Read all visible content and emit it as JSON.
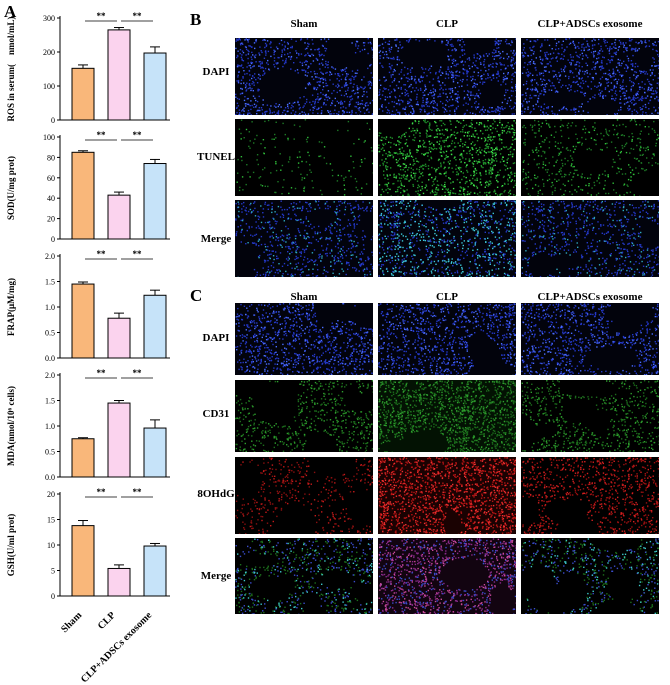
{
  "panels": {
    "a": "A",
    "b": "B",
    "c": "C"
  },
  "groups": [
    "Sham",
    "CLP",
    "CLP+ADSCs exosome"
  ],
  "group_colors": [
    "#f9b77a",
    "#fbd3ee",
    "#c6e3f9"
  ],
  "significance_label": "**",
  "panel_b": {
    "columns": [
      "Sham",
      "CLP",
      "CLP+ADSCs exosome"
    ],
    "rows": [
      "DAPI",
      "TUNEL",
      "Merge"
    ]
  },
  "panel_c": {
    "columns": [
      "Sham",
      "CLP",
      "CLP+ADSCs exosome"
    ],
    "rows": [
      "DAPI",
      "CD31",
      "8OHdG",
      "Merge"
    ]
  },
  "chart_data": [
    {
      "type": "bar",
      "categories": [
        "Sham",
        "CLP",
        "CLP+ADSCs exosome"
      ],
      "values": [
        152,
        265,
        197
      ],
      "errors": [
        10,
        7,
        18
      ],
      "ylabel": "ROS in serum(　nmol/mL)",
      "ylim": [
        0,
        300
      ],
      "yticks": [
        0,
        100,
        200,
        300
      ]
    },
    {
      "type": "bar",
      "categories": [
        "Sham",
        "CLP",
        "CLP+ADSCs exosome"
      ],
      "values": [
        85,
        43,
        74
      ],
      "errors": [
        1.5,
        3,
        4
      ],
      "ylabel": "SOD(U/mg prot)",
      "ylim": [
        0,
        100
      ],
      "yticks": [
        0,
        20,
        40,
        60,
        80,
        100
      ]
    },
    {
      "type": "bar",
      "categories": [
        "Sham",
        "CLP",
        "CLP+ADSCs exosome"
      ],
      "values": [
        1.45,
        0.78,
        1.23
      ],
      "errors": [
        0.04,
        0.1,
        0.1
      ],
      "ylabel": "FRAP(μM/mg)",
      "ylim": [
        0,
        2.0
      ],
      "yticks": [
        "0.0",
        "0.5",
        "1.0",
        "1.5",
        "2.0"
      ]
    },
    {
      "type": "bar",
      "categories": [
        "Sham",
        "CLP",
        "CLP+ADSCs exosome"
      ],
      "values": [
        0.75,
        1.45,
        0.96
      ],
      "errors": [
        0.02,
        0.05,
        0.16
      ],
      "ylabel": "MDA(nmol/10⁶ cells)",
      "ylim": [
        0,
        2.0
      ],
      "yticks": [
        "0.0",
        "0.5",
        "1.0",
        "1.5",
        "2.0"
      ]
    },
    {
      "type": "bar",
      "categories": [
        "Sham",
        "CLP",
        "CLP+ADSCs exosome"
      ],
      "values": [
        13.8,
        5.4,
        9.8
      ],
      "errors": [
        1.0,
        0.7,
        0.5
      ],
      "ylabel": "GSH(U/ml prot)",
      "ylim": [
        0,
        20
      ],
      "yticks": [
        0,
        5,
        10,
        15,
        20
      ]
    }
  ]
}
